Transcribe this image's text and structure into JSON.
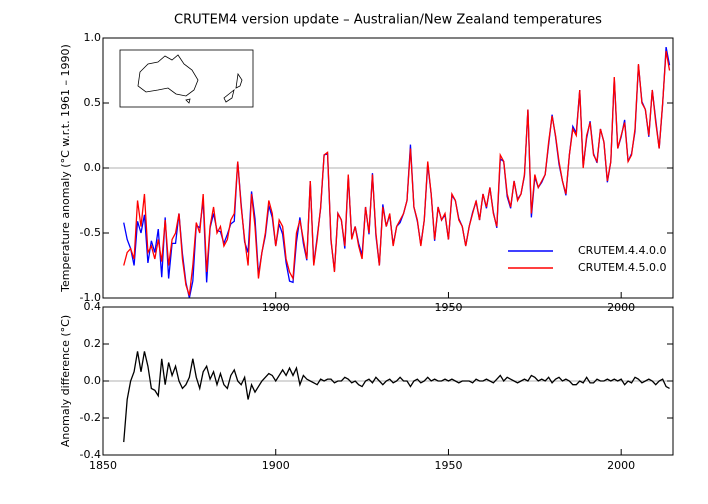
{
  "chart_data": [
    {
      "type": "line",
      "title": "CRUTEM4 version update – Australian/New Zealand temperatures",
      "ylabel": "Temperature anomaly (°C w.r.t. 1961 – 1990)",
      "x": [
        1856,
        1857,
        1858,
        1859,
        1860,
        1861,
        1862,
        1863,
        1864,
        1865,
        1866,
        1867,
        1868,
        1869,
        1870,
        1871,
        1872,
        1873,
        1874,
        1875,
        1876,
        1877,
        1878,
        1879,
        1880,
        1881,
        1882,
        1883,
        1884,
        1885,
        1886,
        1887,
        1888,
        1889,
        1890,
        1891,
        1892,
        1893,
        1894,
        1895,
        1896,
        1897,
        1898,
        1899,
        1900,
        1901,
        1902,
        1903,
        1904,
        1905,
        1906,
        1907,
        1908,
        1909,
        1910,
        1911,
        1912,
        1913,
        1914,
        1915,
        1916,
        1917,
        1918,
        1919,
        1920,
        1921,
        1922,
        1923,
        1924,
        1925,
        1926,
        1927,
        1928,
        1929,
        1930,
        1931,
        1932,
        1933,
        1934,
        1935,
        1936,
        1937,
        1938,
        1939,
        1940,
        1941,
        1942,
        1943,
        1944,
        1945,
        1946,
        1947,
        1948,
        1949,
        1950,
        1951,
        1952,
        1953,
        1954,
        1955,
        1956,
        1957,
        1958,
        1959,
        1960,
        1961,
        1962,
        1963,
        1964,
        1965,
        1966,
        1967,
        1968,
        1969,
        1970,
        1971,
        1972,
        1973,
        1974,
        1975,
        1976,
        1977,
        1978,
        1979,
        1980,
        1981,
        1982,
        1983,
        1984,
        1985,
        1986,
        1987,
        1988,
        1989,
        1990,
        1991,
        1992,
        1993,
        1994,
        1995,
        1996,
        1997,
        1998,
        1999,
        2000,
        2001,
        2002,
        2003,
        2004,
        2005,
        2006,
        2007,
        2008,
        2009,
        2010,
        2011,
        2012,
        2013,
        2014
      ],
      "series": [
        {
          "name": "CRUTEM.4.4.0.0",
          "color": "#0000ff",
          "values": [
            -0.42,
            -0.55,
            -0.62,
            -0.75,
            -0.41,
            -0.5,
            -0.36,
            -0.73,
            -0.56,
            -0.65,
            -0.47,
            -0.84,
            -0.38,
            -0.85,
            -0.58,
            -0.58,
            -0.35,
            -0.66,
            -0.88,
            -1.0,
            -0.87,
            -0.44,
            -0.46,
            -0.25,
            -0.88,
            -0.46,
            -0.35,
            -0.48,
            -0.49,
            -0.58,
            -0.51,
            -0.43,
            -0.41,
            0.05,
            -0.28,
            -0.57,
            -0.65,
            -0.18,
            -0.39,
            -0.82,
            -0.65,
            -0.52,
            -0.29,
            -0.38,
            -0.6,
            -0.43,
            -0.51,
            -0.73,
            -0.87,
            -0.88,
            -0.57,
            -0.38,
            -0.58,
            -0.71,
            -0.1,
            -0.74,
            -0.53,
            -0.31,
            0.1,
            0.11,
            -0.56,
            -0.79,
            -0.35,
            -0.4,
            -0.62,
            -0.06,
            -0.54,
            -0.45,
            -0.58,
            -0.67,
            -0.3,
            -0.51,
            -0.04,
            -0.52,
            -0.75,
            -0.28,
            -0.45,
            -0.36,
            -0.59,
            -0.45,
            -0.42,
            -0.35,
            -0.25,
            0.18,
            -0.3,
            -0.41,
            -0.59,
            -0.4,
            0.03,
            -0.2,
            -0.56,
            -0.3,
            -0.4,
            -0.36,
            -0.55,
            -0.21,
            -0.25,
            -0.39,
            -0.45,
            -0.6,
            -0.45,
            -0.34,
            -0.26,
            -0.4,
            -0.2,
            -0.31,
            -0.15,
            -0.34,
            -0.46,
            0.07,
            0.05,
            -0.22,
            -0.31,
            -0.1,
            -0.24,
            -0.2,
            -0.06,
            0.45,
            -0.38,
            -0.07,
            -0.15,
            -0.11,
            -0.05,
            0.18,
            0.41,
            0.24,
            0.03,
            -0.1,
            -0.21,
            0.1,
            0.32,
            0.27,
            0.6,
            0.01,
            0.23,
            0.36,
            0.11,
            0.04,
            0.3,
            0.2,
            -0.11,
            0.05,
            0.69,
            0.15,
            0.24,
            0.37,
            0.05,
            0.11,
            0.28,
            0.79,
            0.51,
            0.45,
            0.24,
            0.6,
            0.37,
            0.15,
            0.49,
            0.93,
            0.79
          ]
        },
        {
          "name": "CRUTEM.4.5.0.0",
          "color": "#ff0000",
          "values": [
            -0.75,
            -0.65,
            -0.62,
            -0.7,
            -0.25,
            -0.45,
            -0.2,
            -0.65,
            -0.6,
            -0.7,
            -0.55,
            -0.72,
            -0.4,
            -0.75,
            -0.55,
            -0.5,
            -0.35,
            -0.7,
            -0.9,
            -0.98,
            -0.75,
            -0.42,
            -0.5,
            -0.2,
            -0.8,
            -0.45,
            -0.3,
            -0.5,
            -0.45,
            -0.6,
            -0.55,
            -0.4,
            -0.35,
            0.05,
            -0.3,
            -0.55,
            -0.75,
            -0.2,
            -0.45,
            -0.85,
            -0.65,
            -0.5,
            -0.25,
            -0.35,
            -0.6,
            -0.4,
            -0.45,
            -0.7,
            -0.8,
            -0.85,
            -0.5,
            -0.4,
            -0.55,
            -0.7,
            -0.1,
            -0.75,
            -0.55,
            -0.3,
            0.1,
            0.12,
            -0.55,
            -0.8,
            -0.35,
            -0.4,
            -0.6,
            -0.05,
            -0.55,
            -0.45,
            -0.6,
            -0.7,
            -0.3,
            -0.5,
            -0.05,
            -0.5,
            -0.75,
            -0.3,
            -0.45,
            -0.35,
            -0.6,
            -0.45,
            -0.4,
            -0.35,
            -0.25,
            0.15,
            -0.3,
            -0.4,
            -0.6,
            -0.4,
            0.05,
            -0.2,
            -0.55,
            -0.3,
            -0.4,
            -0.35,
            -0.55,
            -0.2,
            -0.25,
            -0.4,
            -0.45,
            -0.6,
            -0.45,
            -0.35,
            -0.25,
            -0.4,
            -0.2,
            -0.3,
            -0.15,
            -0.35,
            -0.45,
            0.1,
            0.05,
            -0.2,
            -0.3,
            -0.1,
            -0.25,
            -0.2,
            -0.05,
            0.45,
            -0.35,
            -0.05,
            -0.15,
            -0.1,
            -0.05,
            0.2,
            0.4,
            0.25,
            0.05,
            -0.1,
            -0.2,
            0.1,
            0.3,
            0.25,
            0.6,
            0.0,
            0.25,
            0.35,
            0.1,
            0.05,
            0.3,
            0.2,
            -0.1,
            0.05,
            0.7,
            0.15,
            0.25,
            0.35,
            0.05,
            0.1,
            0.3,
            0.8,
            0.5,
            0.45,
            0.25,
            0.6,
            0.35,
            0.15,
            0.5,
            0.9,
            0.75
          ]
        }
      ],
      "xlim": [
        1850,
        2015
      ],
      "xticks": [
        1900,
        1950,
        2000
      ],
      "ylim": [
        -1,
        1
      ],
      "yticks": [
        {
          "value": -1,
          "label": "-1.0"
        },
        {
          "value": -0.5,
          "label": "-0.5"
        },
        {
          "value": 0,
          "label": "0.0"
        },
        {
          "value": 0.5,
          "label": "0.5"
        },
        {
          "value": 1,
          "label": "1.0"
        }
      ],
      "reference_line": 0,
      "legend": "lower right"
    },
    {
      "type": "line",
      "ylabel": "Anomaly difference (°C)",
      "x": [
        1856,
        1857,
        1858,
        1859,
        1860,
        1861,
        1862,
        1863,
        1864,
        1865,
        1866,
        1867,
        1868,
        1869,
        1870,
        1871,
        1872,
        1873,
        1874,
        1875,
        1876,
        1877,
        1878,
        1879,
        1880,
        1881,
        1882,
        1883,
        1884,
        1885,
        1886,
        1887,
        1888,
        1889,
        1890,
        1891,
        1892,
        1893,
        1894,
        1895,
        1896,
        1897,
        1898,
        1899,
        1900,
        1901,
        1902,
        1903,
        1904,
        1905,
        1906,
        1907,
        1908,
        1909,
        1910,
        1911,
        1912,
        1913,
        1914,
        1915,
        1916,
        1917,
        1918,
        1919,
        1920,
        1921,
        1922,
        1923,
        1924,
        1925,
        1926,
        1927,
        1928,
        1929,
        1930,
        1931,
        1932,
        1933,
        1934,
        1935,
        1936,
        1937,
        1938,
        1939,
        1940,
        1941,
        1942,
        1943,
        1944,
        1945,
        1946,
        1947,
        1948,
        1949,
        1950,
        1951,
        1952,
        1953,
        1954,
        1955,
        1956,
        1957,
        1958,
        1959,
        1960,
        1961,
        1962,
        1963,
        1964,
        1965,
        1966,
        1967,
        1968,
        1969,
        1970,
        1971,
        1972,
        1973,
        1974,
        1975,
        1976,
        1977,
        1978,
        1979,
        1980,
        1981,
        1982,
        1983,
        1984,
        1985,
        1986,
        1987,
        1988,
        1989,
        1990,
        1991,
        1992,
        1993,
        1994,
        1995,
        1996,
        1997,
        1998,
        1999,
        2000,
        2001,
        2002,
        2003,
        2004,
        2005,
        2006,
        2007,
        2008,
        2009,
        2010,
        2011,
        2012,
        2013,
        2014
      ],
      "series": [
        {
          "color": "#000000",
          "values": [
            -0.33,
            -0.1,
            0.0,
            0.05,
            0.16,
            0.05,
            0.16,
            0.08,
            -0.04,
            -0.05,
            -0.08,
            0.12,
            -0.02,
            0.1,
            0.03,
            0.08,
            0.0,
            -0.04,
            -0.02,
            0.02,
            0.12,
            0.02,
            -0.04,
            0.05,
            0.08,
            0.01,
            0.05,
            -0.02,
            0.04,
            -0.02,
            -0.04,
            0.03,
            0.06,
            0.0,
            -0.02,
            0.02,
            -0.1,
            -0.02,
            -0.06,
            -0.03,
            0.0,
            0.02,
            0.04,
            0.03,
            0.0,
            0.03,
            0.06,
            0.03,
            0.07,
            0.03,
            0.07,
            -0.02,
            0.03,
            0.01,
            0.0,
            -0.01,
            -0.02,
            0.01,
            0.0,
            0.01,
            0.01,
            -0.01,
            0.0,
            0.0,
            0.02,
            0.01,
            -0.01,
            0.0,
            -0.02,
            -0.03,
            0.0,
            0.01,
            -0.01,
            0.02,
            0.0,
            -0.02,
            0.0,
            0.01,
            -0.01,
            0.0,
            0.02,
            0.0,
            0.0,
            -0.03,
            0.0,
            0.01,
            -0.01,
            0.0,
            0.02,
            0.0,
            0.01,
            0.0,
            0.0,
            0.01,
            0.0,
            0.01,
            0.0,
            -0.01,
            0.0,
            0.0,
            0.0,
            -0.01,
            0.01,
            0.0,
            0.0,
            0.01,
            0.0,
            -0.01,
            0.01,
            0.03,
            0.0,
            0.02,
            0.01,
            0.0,
            -0.01,
            0.0,
            0.01,
            0.0,
            0.03,
            0.02,
            0.0,
            0.01,
            0.0,
            0.02,
            -0.01,
            0.01,
            0.02,
            0.0,
            0.01,
            0.0,
            -0.02,
            -0.02,
            0.0,
            -0.01,
            0.02,
            -0.01,
            -0.01,
            0.01,
            0.0,
            0.0,
            0.01,
            0.0,
            0.01,
            0.0,
            0.01,
            -0.02,
            0.0,
            -0.01,
            0.02,
            0.01,
            -0.01,
            0.0,
            0.01,
            0.0,
            -0.02,
            0.0,
            0.01,
            -0.03,
            -0.04
          ]
        }
      ],
      "xlim": [
        1850,
        2015
      ],
      "xticks": [
        1850,
        1900,
        1950,
        2000
      ],
      "ylim": [
        -0.4,
        0.4
      ],
      "yticks": [
        {
          "value": -0.4,
          "label": "-0.4"
        },
        {
          "value": -0.2,
          "label": "-0.2"
        },
        {
          "value": 0,
          "label": "0.0"
        },
        {
          "value": 0.2,
          "label": "0.2"
        },
        {
          "value": 0.4,
          "label": "0.4"
        }
      ],
      "reference_line": 0
    }
  ]
}
